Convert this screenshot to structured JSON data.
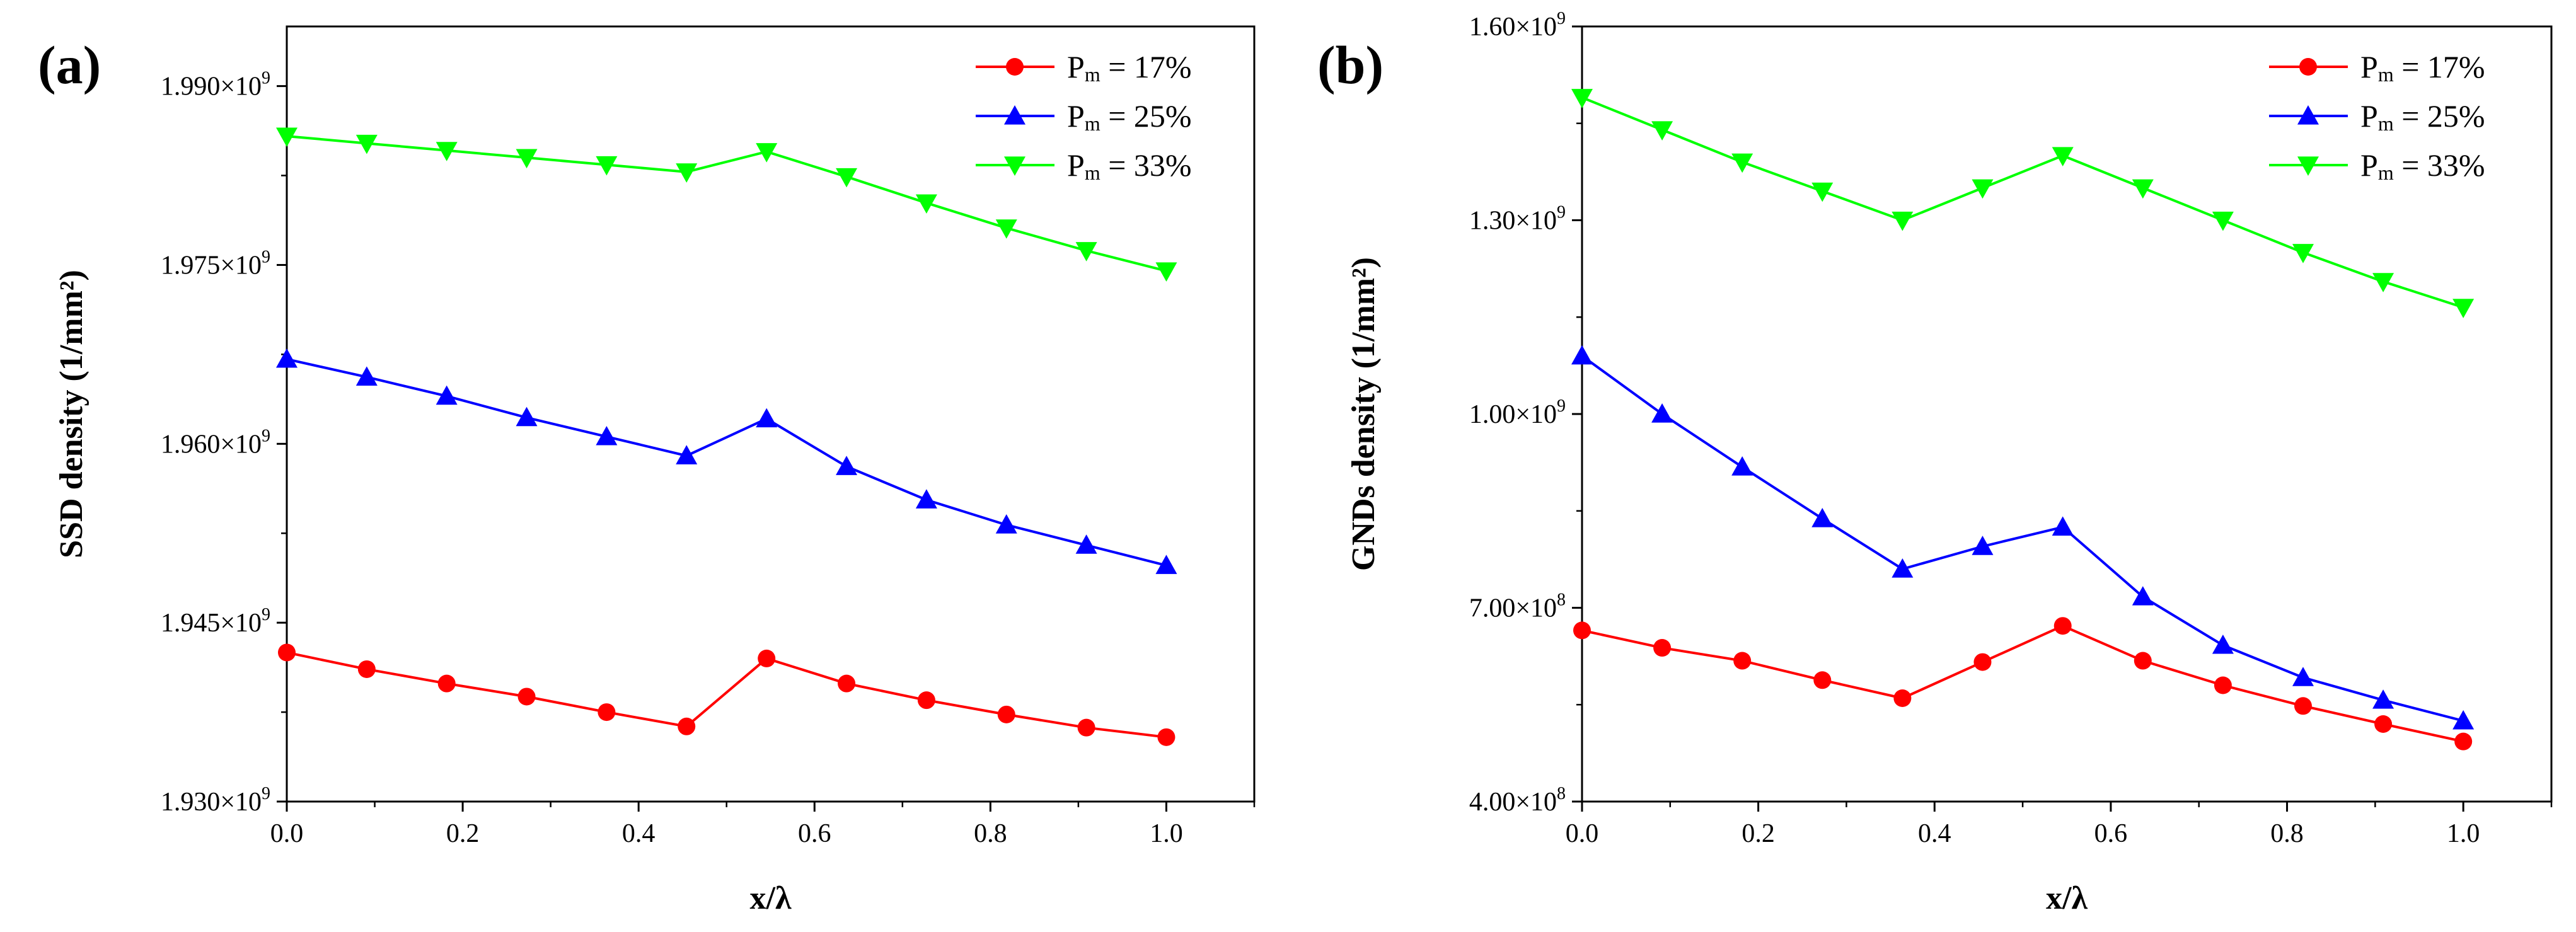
{
  "chart_data": [
    {
      "type": "line",
      "panel_label": "(a)",
      "xlabel": "x/λ",
      "ylabel": "SSD density (1/mm²)",
      "xlim": [
        0,
        1.1
      ],
      "ylim": [
        1930000000.0,
        1995000000.0
      ],
      "x_ticks": [
        0.0,
        0.2,
        0.4,
        0.6,
        0.8,
        1.0
      ],
      "x_tick_labels": [
        "0.0",
        "0.2",
        "0.4",
        "0.6",
        "0.8",
        "1.0"
      ],
      "y_ticks": [
        1930000000.0,
        1945000000.0,
        1960000000.0,
        1975000000.0,
        1990000000.0
      ],
      "y_tick_labels": [
        {
          "mantissa": "1.930×10",
          "exp": "9"
        },
        {
          "mantissa": "1.945×10",
          "exp": "9"
        },
        {
          "mantissa": "1.960×10",
          "exp": "9"
        },
        {
          "mantissa": "1.975×10",
          "exp": "9"
        },
        {
          "mantissa": "1.990×10",
          "exp": "9"
        }
      ],
      "legend_position": "top-right",
      "grid": false,
      "x": [
        0,
        0.0909,
        0.1818,
        0.2727,
        0.3636,
        0.4545,
        0.5455,
        0.6364,
        0.7273,
        0.8182,
        0.9091,
        1.0
      ],
      "series": [
        {
          "name": "Pm = 17%",
          "label_main": "P",
          "label_sub": "m",
          "label_tail": " = 17%",
          "color": "#ff0000",
          "marker": "circle",
          "values": [
            1942500000.0,
            1941100000.0,
            1939900000.0,
            1938800000.0,
            1937500000.0,
            1936300000.0,
            1942000000.0,
            1939900000.0,
            1938500000.0,
            1937300000.0,
            1936200000.0,
            1935400000.0
          ]
        },
        {
          "name": "Pm = 25%",
          "label_main": "P",
          "label_sub": "m",
          "label_tail": " = 25%",
          "color": "#0000ff",
          "marker": "triangle-up",
          "values": [
            1967100000.0,
            1965600000.0,
            1964000000.0,
            1962200000.0,
            1960600000.0,
            1959000000.0,
            1962100000.0,
            1958100000.0,
            1955300000.0,
            1953200000.0,
            1951500000.0,
            1949800000.0
          ]
        },
        {
          "name": "Pm = 33%",
          "label_main": "P",
          "label_sub": "m",
          "label_tail": " = 33%",
          "color": "#00ff00",
          "marker": "triangle-down",
          "values": [
            1985800000.0,
            1985200000.0,
            1984600000.0,
            1984000000.0,
            1983400000.0,
            1982800000.0,
            1984500000.0,
            1982400000.0,
            1980200000.0,
            1978100000.0,
            1976200000.0,
            1974500000.0
          ]
        }
      ]
    },
    {
      "type": "line",
      "panel_label": "(b)",
      "xlabel": "x/λ",
      "ylabel": "GNDs density (1/mm²)",
      "xlim": [
        0,
        1.1
      ],
      "ylim": [
        400000000.0,
        1600000000.0
      ],
      "x_ticks": [
        0.0,
        0.2,
        0.4,
        0.6,
        0.8,
        1.0
      ],
      "x_tick_labels": [
        "0.0",
        "0.2",
        "0.4",
        "0.6",
        "0.8",
        "1.0"
      ],
      "y_ticks": [
        400000000.0,
        700000000.0,
        1000000000.0,
        1300000000.0,
        1600000000.0
      ],
      "y_tick_labels": [
        {
          "mantissa": "4.00×10",
          "exp": "8"
        },
        {
          "mantissa": "7.00×10",
          "exp": "8"
        },
        {
          "mantissa": "1.00×10",
          "exp": "9"
        },
        {
          "mantissa": "1.30×10",
          "exp": "9"
        },
        {
          "mantissa": "1.60×10",
          "exp": "9"
        }
      ],
      "legend_position": "top-right",
      "grid": false,
      "x": [
        0,
        0.0909,
        0.1818,
        0.2727,
        0.3636,
        0.4545,
        0.5455,
        0.6364,
        0.7273,
        0.8182,
        0.9091,
        1.0
      ],
      "series": [
        {
          "name": "Pm = 17%",
          "label_main": "P",
          "label_sub": "m",
          "label_tail": " = 17%",
          "color": "#ff0000",
          "marker": "circle",
          "values": [
            665000000.0,
            638000000.0,
            618000000.0,
            588000000.0,
            560000000.0,
            616000000.0,
            672000000.0,
            618000000.0,
            580000000.0,
            548000000.0,
            520000000.0,
            493000000.0
          ]
        },
        {
          "name": "Pm = 25%",
          "label_main": "P",
          "label_sub": "m",
          "label_tail": " = 25%",
          "color": "#0000ff",
          "marker": "triangle-up",
          "values": [
            1090000000.0,
            1000000000.0,
            918000000.0,
            838000000.0,
            760000000.0,
            795000000.0,
            825000000.0,
            717000000.0,
            642000000.0,
            592000000.0,
            557000000.0,
            525000000.0
          ]
        },
        {
          "name": "Pm = 33%",
          "label_main": "P",
          "label_sub": "m",
          "label_tail": " = 33%",
          "color": "#00ff00",
          "marker": "triangle-down",
          "values": [
            1490000000.0,
            1440000000.0,
            1390000000.0,
            1345000000.0,
            1300000000.0,
            1350000000.0,
            1400000000.0,
            1350000000.0,
            1300000000.0,
            1250000000.0,
            1205000000.0,
            1165000000.0
          ]
        }
      ]
    }
  ]
}
